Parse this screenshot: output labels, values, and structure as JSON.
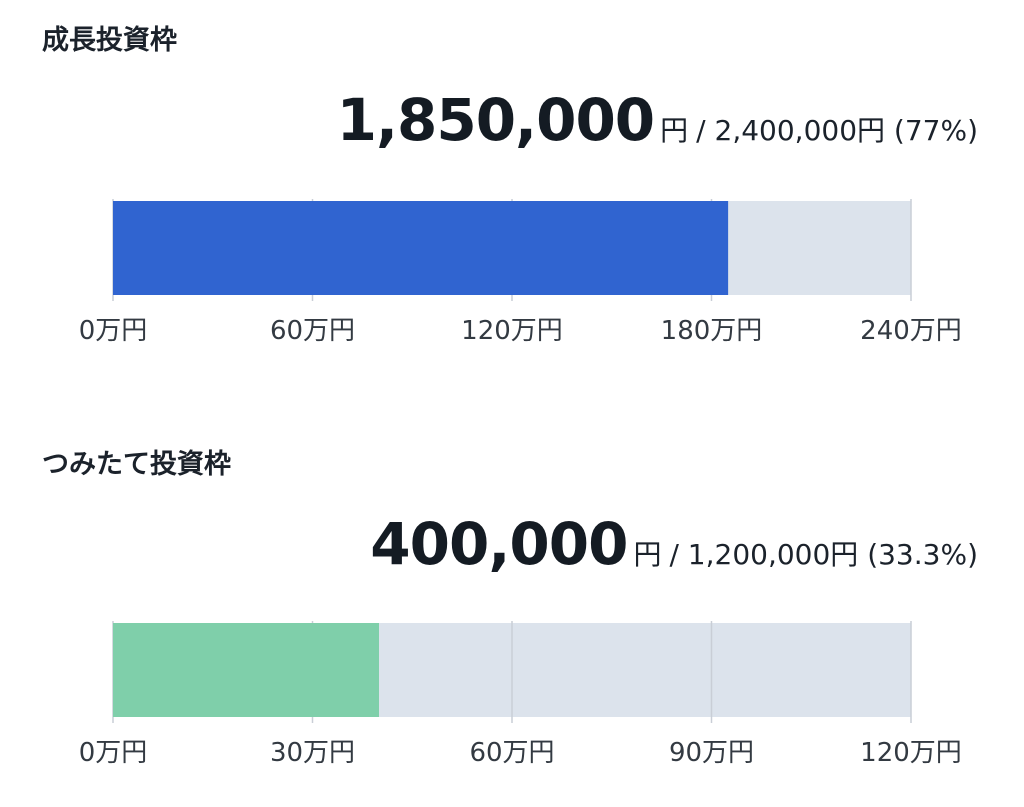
{
  "colors": {
    "growth_fill": "#3064d0",
    "tsumitate_fill": "#7fcfaa",
    "track": "#dce3ec",
    "gridline": "#c9ced6"
  },
  "growth": {
    "title": "成長投資枠",
    "amount": "1,850,000",
    "unit": "円",
    "rest": "/ 2,400,000円 (77%)"
  },
  "tsumitate": {
    "title": "つみたて投資枠",
    "amount": "400,000",
    "unit": "円",
    "rest": "/ 1,200,000円 (33.3%)"
  },
  "chart_data": [
    {
      "type": "bar",
      "orientation": "horizontal",
      "title": "成長投資枠",
      "values": [
        1850000
      ],
      "xlim": [
        0,
        2400000
      ],
      "ticks": [
        0,
        600000,
        1200000,
        1800000,
        2400000
      ],
      "tick_labels": [
        "0万円",
        "60万円",
        "120万円",
        "180万円",
        "240万円"
      ],
      "grid": true
    },
    {
      "type": "bar",
      "orientation": "horizontal",
      "title": "つみたて投資枠",
      "values": [
        400000
      ],
      "xlim": [
        0,
        1200000
      ],
      "ticks": [
        0,
        300000,
        600000,
        900000,
        1200000
      ],
      "tick_labels": [
        "0万円",
        "30万円",
        "60万円",
        "90万円",
        "120万円"
      ],
      "grid": true
    }
  ]
}
